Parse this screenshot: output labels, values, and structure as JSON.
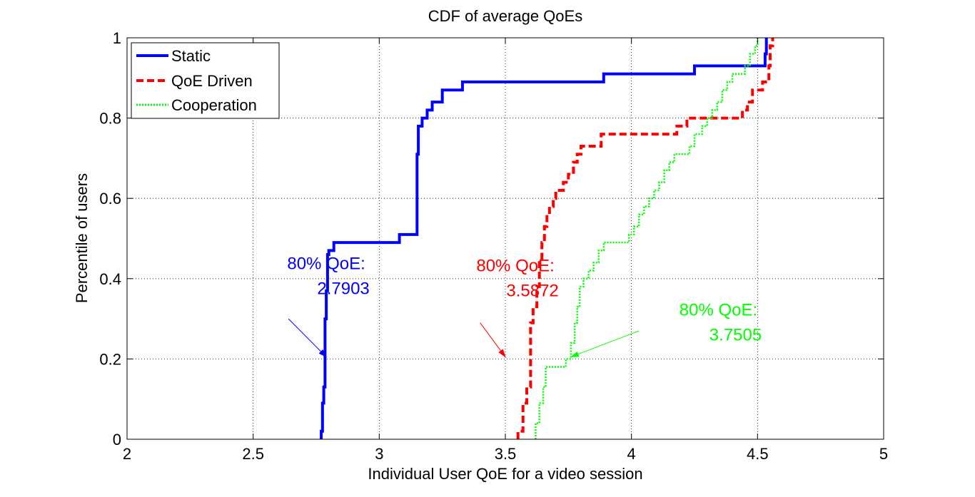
{
  "colors": {
    "static": "#0000ff",
    "qoe_driven": "#ff0000",
    "cooperation": "#00ff00",
    "axis": "#000000",
    "grid": "#000000"
  },
  "chart_data": {
    "type": "line",
    "title": "CDF of average QoEs",
    "xlabel": "Individual User QoE for a video session",
    "ylabel": "Percentile of users",
    "xlim": [
      2,
      5
    ],
    "ylim": [
      0,
      1
    ],
    "xticks": [
      "2",
      "2.5",
      "3",
      "3.5",
      "4",
      "4.5",
      "5"
    ],
    "yticks": [
      "0",
      "0.2",
      "0.4",
      "0.6",
      "0.8",
      "1"
    ],
    "grid": true,
    "legend_position": "top-left",
    "series": [
      {
        "name": "Static",
        "color": "#0000ff",
        "style": "solid",
        "points": [
          [
            2.77,
            0.0
          ],
          [
            2.77,
            0.02
          ],
          [
            2.775,
            0.02
          ],
          [
            2.775,
            0.09
          ],
          [
            2.78,
            0.09
          ],
          [
            2.78,
            0.13
          ],
          [
            2.785,
            0.13
          ],
          [
            2.785,
            0.3
          ],
          [
            2.79,
            0.3
          ],
          [
            2.79,
            0.37
          ],
          [
            2.795,
            0.37
          ],
          [
            2.795,
            0.46
          ],
          [
            2.8,
            0.46
          ],
          [
            2.8,
            0.47
          ],
          [
            2.82,
            0.47
          ],
          [
            2.82,
            0.49
          ],
          [
            3.08,
            0.49
          ],
          [
            3.08,
            0.51
          ],
          [
            3.15,
            0.51
          ],
          [
            3.15,
            0.71
          ],
          [
            3.155,
            0.71
          ],
          [
            3.155,
            0.78
          ],
          [
            3.17,
            0.78
          ],
          [
            3.17,
            0.8
          ],
          [
            3.19,
            0.8
          ],
          [
            3.19,
            0.82
          ],
          [
            3.21,
            0.82
          ],
          [
            3.21,
            0.84
          ],
          [
            3.25,
            0.84
          ],
          [
            3.25,
            0.87
          ],
          [
            3.33,
            0.87
          ],
          [
            3.33,
            0.89
          ],
          [
            3.89,
            0.89
          ],
          [
            3.89,
            0.91
          ],
          [
            4.25,
            0.91
          ],
          [
            4.25,
            0.93
          ],
          [
            4.53,
            0.93
          ],
          [
            4.53,
            0.96
          ],
          [
            4.535,
            0.96
          ],
          [
            4.535,
            1.0
          ]
        ]
      },
      {
        "name": "QoE Driven",
        "color": "#ff0000",
        "style": "dashed",
        "points": [
          [
            3.55,
            0.0
          ],
          [
            3.55,
            0.02
          ],
          [
            3.57,
            0.02
          ],
          [
            3.57,
            0.09
          ],
          [
            3.585,
            0.09
          ],
          [
            3.585,
            0.13
          ],
          [
            3.6,
            0.13
          ],
          [
            3.6,
            0.29
          ],
          [
            3.61,
            0.29
          ],
          [
            3.61,
            0.33
          ],
          [
            3.625,
            0.33
          ],
          [
            3.625,
            0.38
          ],
          [
            3.635,
            0.38
          ],
          [
            3.635,
            0.44
          ],
          [
            3.645,
            0.44
          ],
          [
            3.645,
            0.49
          ],
          [
            3.655,
            0.49
          ],
          [
            3.655,
            0.53
          ],
          [
            3.665,
            0.53
          ],
          [
            3.665,
            0.56
          ],
          [
            3.675,
            0.56
          ],
          [
            3.675,
            0.58
          ],
          [
            3.69,
            0.58
          ],
          [
            3.69,
            0.6
          ],
          [
            3.7,
            0.6
          ],
          [
            3.7,
            0.62
          ],
          [
            3.73,
            0.62
          ],
          [
            3.73,
            0.64
          ],
          [
            3.75,
            0.64
          ],
          [
            3.75,
            0.66
          ],
          [
            3.77,
            0.66
          ],
          [
            3.77,
            0.69
          ],
          [
            3.785,
            0.69
          ],
          [
            3.785,
            0.71
          ],
          [
            3.8,
            0.71
          ],
          [
            3.8,
            0.73
          ],
          [
            3.88,
            0.73
          ],
          [
            3.88,
            0.76
          ],
          [
            4.18,
            0.76
          ],
          [
            4.18,
            0.78
          ],
          [
            4.22,
            0.78
          ],
          [
            4.22,
            0.8
          ],
          [
            4.44,
            0.8
          ],
          [
            4.44,
            0.82
          ],
          [
            4.46,
            0.82
          ],
          [
            4.46,
            0.84
          ],
          [
            4.48,
            0.84
          ],
          [
            4.48,
            0.87
          ],
          [
            4.52,
            0.87
          ],
          [
            4.52,
            0.89
          ],
          [
            4.545,
            0.89
          ],
          [
            4.545,
            0.93
          ],
          [
            4.55,
            0.93
          ],
          [
            4.55,
            0.98
          ],
          [
            4.56,
            0.98
          ],
          [
            4.56,
            1.0
          ]
        ]
      },
      {
        "name": "Cooperation",
        "color": "#00ff00",
        "style": "dotted",
        "points": [
          [
            3.62,
            0.0
          ],
          [
            3.62,
            0.04
          ],
          [
            3.635,
            0.04
          ],
          [
            3.635,
            0.09
          ],
          [
            3.65,
            0.09
          ],
          [
            3.65,
            0.13
          ],
          [
            3.66,
            0.13
          ],
          [
            3.66,
            0.18
          ],
          [
            3.74,
            0.18
          ],
          [
            3.74,
            0.2
          ],
          [
            3.76,
            0.2
          ],
          [
            3.76,
            0.24
          ],
          [
            3.775,
            0.24
          ],
          [
            3.775,
            0.29
          ],
          [
            3.785,
            0.29
          ],
          [
            3.785,
            0.33
          ],
          [
            3.795,
            0.33
          ],
          [
            3.795,
            0.38
          ],
          [
            3.81,
            0.38
          ],
          [
            3.81,
            0.4
          ],
          [
            3.83,
            0.4
          ],
          [
            3.83,
            0.42
          ],
          [
            3.85,
            0.42
          ],
          [
            3.85,
            0.44
          ],
          [
            3.87,
            0.44
          ],
          [
            3.87,
            0.47
          ],
          [
            3.89,
            0.47
          ],
          [
            3.89,
            0.49
          ],
          [
            3.99,
            0.49
          ],
          [
            3.99,
            0.51
          ],
          [
            4.01,
            0.51
          ],
          [
            4.01,
            0.53
          ],
          [
            4.03,
            0.53
          ],
          [
            4.03,
            0.56
          ],
          [
            4.05,
            0.56
          ],
          [
            4.05,
            0.58
          ],
          [
            4.07,
            0.58
          ],
          [
            4.07,
            0.6
          ],
          [
            4.09,
            0.6
          ],
          [
            4.09,
            0.62
          ],
          [
            4.11,
            0.62
          ],
          [
            4.11,
            0.64
          ],
          [
            4.13,
            0.64
          ],
          [
            4.13,
            0.67
          ],
          [
            4.15,
            0.67
          ],
          [
            4.15,
            0.69
          ],
          [
            4.17,
            0.69
          ],
          [
            4.17,
            0.71
          ],
          [
            4.23,
            0.71
          ],
          [
            4.23,
            0.73
          ],
          [
            4.25,
            0.73
          ],
          [
            4.25,
            0.76
          ],
          [
            4.28,
            0.76
          ],
          [
            4.28,
            0.78
          ],
          [
            4.3,
            0.78
          ],
          [
            4.3,
            0.8
          ],
          [
            4.32,
            0.8
          ],
          [
            4.32,
            0.82
          ],
          [
            4.34,
            0.82
          ],
          [
            4.34,
            0.84
          ],
          [
            4.36,
            0.84
          ],
          [
            4.36,
            0.87
          ],
          [
            4.38,
            0.87
          ],
          [
            4.38,
            0.89
          ],
          [
            4.4,
            0.89
          ],
          [
            4.4,
            0.91
          ],
          [
            4.45,
            0.91
          ],
          [
            4.45,
            0.93
          ],
          [
            4.47,
            0.93
          ],
          [
            4.47,
            0.96
          ],
          [
            4.49,
            0.96
          ],
          [
            4.49,
            0.98
          ],
          [
            4.5,
            0.98
          ],
          [
            4.5,
            1.0
          ]
        ]
      }
    ],
    "annotations": [
      {
        "name": "static-80",
        "line1": "80% QoE:",
        "line2": "2.7903",
        "color": "#0000ff",
        "text_at": [
          2.635,
          0.365
        ],
        "arrow_from": [
          2.64,
          0.3
        ],
        "arrow_to": [
          2.79,
          0.205
        ]
      },
      {
        "name": "qoe-driven-80",
        "line1": "80% QoE:",
        "line2": "3.5872",
        "color": "#ff0000",
        "text_at": [
          3.385,
          0.36
        ],
        "arrow_from": [
          3.4,
          0.29
        ],
        "arrow_to": [
          3.5,
          0.205
        ]
      },
      {
        "name": "cooperation-80",
        "line1": "80% QoE:",
        "line2": "3.7505",
        "color": "#00ff00",
        "text_at": [
          4.19,
          0.25
        ],
        "arrow_from": [
          4.03,
          0.27
        ],
        "arrow_to": [
          3.76,
          0.205
        ]
      }
    ]
  }
}
